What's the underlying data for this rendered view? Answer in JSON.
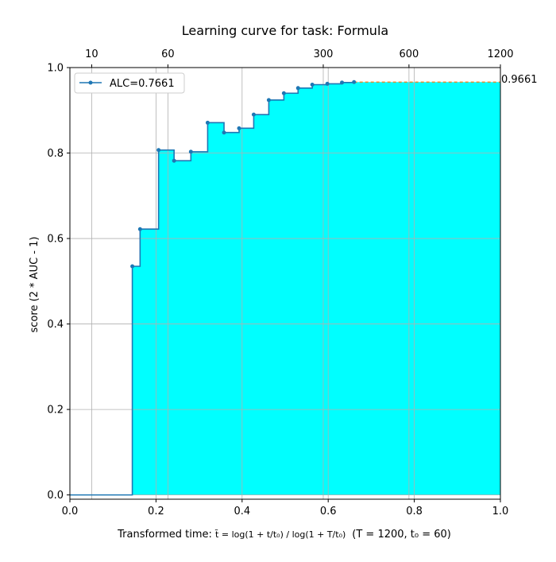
{
  "chart_data": {
    "type": "line",
    "title": "Learning curve for task: Formula",
    "xlabel_prefix": "Transformed time: ",
    "xlabel_formula": "t̃ = log(1 + t/t₀) / log(1 + T/t₀)",
    "xlabel_suffix": "(T = 1200,  t₀ = 60)",
    "ylabel": "score (2 * AUC - 1)",
    "xlim": [
      0,
      1
    ],
    "ylim": [
      -0.01,
      1.0
    ],
    "x_ticks": [
      "0.0",
      "0.2",
      "0.4",
      "0.6",
      "0.8",
      "1.0"
    ],
    "y_ticks": [
      "0.0",
      "0.2",
      "0.4",
      "0.6",
      "0.8",
      "1.0"
    ],
    "top_axis_ticks": [
      {
        "label": "10",
        "t": 10
      },
      {
        "label": "60",
        "t": 60
      },
      {
        "label": "300",
        "t": 300
      },
      {
        "label": "600",
        "t": 600
      },
      {
        "label": "1200",
        "t": 1200
      }
    ],
    "T": 1200,
    "t0": 60,
    "grid": true,
    "legend_position": "top-left",
    "series": [
      {
        "name": "ALC=0.7661",
        "color": "#1f77b4",
        "x": [
          0.145,
          0.163,
          0.206,
          0.242,
          0.281,
          0.32,
          0.358,
          0.393,
          0.427,
          0.462,
          0.497,
          0.53,
          0.563,
          0.598,
          0.632,
          0.66
        ],
        "y": [
          0.535,
          0.622,
          0.807,
          0.782,
          0.803,
          0.871,
          0.848,
          0.858,
          0.89,
          0.924,
          0.94,
          0.952,
          0.96,
          0.962,
          0.965,
          0.966
        ]
      }
    ],
    "fill_color": "#00ffff",
    "final_score_label": "0.9661",
    "final_score": 0.9661,
    "final_line_color": "#ff7f0e"
  }
}
